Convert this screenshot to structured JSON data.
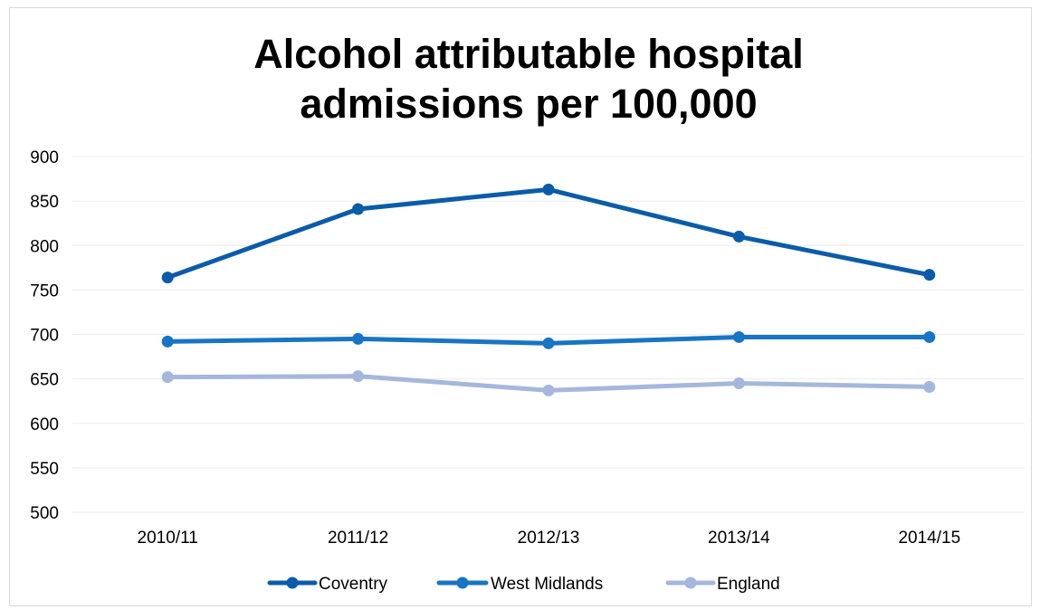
{
  "chart_data": {
    "type": "line",
    "title": "Alcohol attributable hospital admissions per 100,000",
    "title_lines": [
      "Alcohol attributable hospital",
      "admissions per 100,000"
    ],
    "xlabel": "",
    "ylabel": "",
    "categories": [
      "2010/11",
      "2011/12",
      "2012/13",
      "2013/14",
      "2014/15"
    ],
    "ylim": [
      500,
      900
    ],
    "yticks": [
      500,
      550,
      600,
      650,
      700,
      750,
      800,
      850,
      900
    ],
    "grid": true,
    "legend_position": "bottom",
    "series": [
      {
        "name": "Coventry",
        "color": "#0b5ca8",
        "values": [
          764,
          841,
          863,
          810,
          767
        ]
      },
      {
        "name": "West Midlands",
        "color": "#1874c4",
        "values": [
          692,
          695,
          690,
          697,
          697
        ]
      },
      {
        "name": "England",
        "color": "#a5b7dd",
        "values": [
          652,
          653,
          637,
          645,
          641
        ]
      }
    ]
  }
}
